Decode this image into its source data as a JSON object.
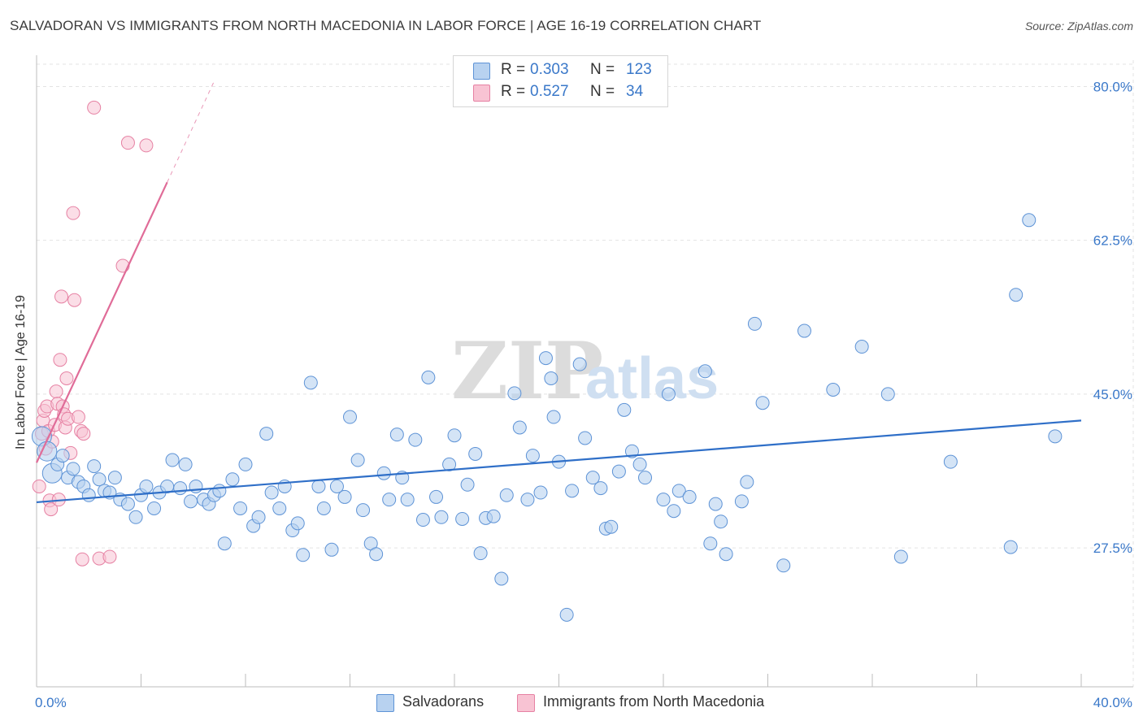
{
  "title": "SALVADORAN VS IMMIGRANTS FROM NORTH MACEDONIA IN LABOR FORCE | AGE 16-19 CORRELATION CHART",
  "source": "Source: ZipAtlas.com",
  "watermark": {
    "part1": "ZIP",
    "part2": "atlas"
  },
  "colors": {
    "blue_fill": "#b8d2f0",
    "blue_stroke": "#5e93d6",
    "blue_line": "#2f6fc8",
    "pink_fill": "#f8c3d3",
    "pink_stroke": "#e681a3",
    "pink_line": "#e06c98",
    "tick_text": "#3a78c9",
    "grid": "#e3e3e3"
  },
  "stats": [
    {
      "r_label": "R =",
      "r_value": "0.303",
      "n_label": "N =",
      "n_value": "123"
    },
    {
      "r_label": "R =",
      "r_value": "0.527",
      "n_label": "N =",
      "n_value": "34"
    }
  ],
  "legend": [
    {
      "label": "Salvadorans"
    },
    {
      "label": "Immigrants from North Macedonia"
    }
  ],
  "chart_data": {
    "type": "scatter",
    "title": "SALVADORAN VS IMMIGRANTS FROM NORTH MACEDONIA IN LABOR FORCE | AGE 16-19 CORRELATION CHART",
    "xlabel": "",
    "ylabel": "In Labor Force | Age 16-19",
    "xlim": [
      0,
      40
    ],
    "ylim": [
      11.7,
      83
    ],
    "x_tick_labels": [
      {
        "value": 0,
        "label": "0.0%"
      },
      {
        "value": 40,
        "label": "40.0%"
      }
    ],
    "y_tick_labels": [
      {
        "value": 80,
        "label": "80.0%"
      },
      {
        "value": 62.5,
        "label": "62.5%"
      },
      {
        "value": 45,
        "label": "45.0%"
      },
      {
        "value": 27.5,
        "label": "27.5%"
      }
    ],
    "series": [
      {
        "name": "Salvadorans",
        "r": 0.303,
        "n": 123,
        "trend": {
          "x": [
            0,
            40
          ],
          "y": [
            32.7,
            42.0
          ]
        },
        "points": [
          [
            0.2,
            40.2
          ],
          [
            0.4,
            38.5
          ],
          [
            0.6,
            36.0
          ],
          [
            0.8,
            37.0
          ],
          [
            1.0,
            38.0
          ],
          [
            1.2,
            35.5
          ],
          [
            1.4,
            36.5
          ],
          [
            1.6,
            35.0
          ],
          [
            1.8,
            34.5
          ],
          [
            2.0,
            33.5
          ],
          [
            2.2,
            36.8
          ],
          [
            2.4,
            35.3
          ],
          [
            2.6,
            34.0
          ],
          [
            2.8,
            33.8
          ],
          [
            3.0,
            35.5
          ],
          [
            3.2,
            33.0
          ],
          [
            3.5,
            32.5
          ],
          [
            3.8,
            31.0
          ],
          [
            4.0,
            33.5
          ],
          [
            4.2,
            34.5
          ],
          [
            4.5,
            32.0
          ],
          [
            4.7,
            33.8
          ],
          [
            5.0,
            34.5
          ],
          [
            5.2,
            37.5
          ],
          [
            5.5,
            34.3
          ],
          [
            5.7,
            37.0
          ],
          [
            5.9,
            32.8
          ],
          [
            6.1,
            34.5
          ],
          [
            6.4,
            33.0
          ],
          [
            6.6,
            32.5
          ],
          [
            6.8,
            33.5
          ],
          [
            7.0,
            34.0
          ],
          [
            7.2,
            28.0
          ],
          [
            7.5,
            35.3
          ],
          [
            7.8,
            32.0
          ],
          [
            8.0,
            37.0
          ],
          [
            8.3,
            30.0
          ],
          [
            8.5,
            31.0
          ],
          [
            8.8,
            40.5
          ],
          [
            9.0,
            33.8
          ],
          [
            9.3,
            32.0
          ],
          [
            9.5,
            34.5
          ],
          [
            9.8,
            29.5
          ],
          [
            10.0,
            30.3
          ],
          [
            10.2,
            26.7
          ],
          [
            10.5,
            46.3
          ],
          [
            10.8,
            34.5
          ],
          [
            11.0,
            32.0
          ],
          [
            11.3,
            27.3
          ],
          [
            11.5,
            34.5
          ],
          [
            11.8,
            33.3
          ],
          [
            12.0,
            42.4
          ],
          [
            12.3,
            37.5
          ],
          [
            12.5,
            31.8
          ],
          [
            12.8,
            28.0
          ],
          [
            13.0,
            26.8
          ],
          [
            13.3,
            36.0
          ],
          [
            13.5,
            33.0
          ],
          [
            13.8,
            40.4
          ],
          [
            14.0,
            35.5
          ],
          [
            14.2,
            33.0
          ],
          [
            14.5,
            39.8
          ],
          [
            14.8,
            30.7
          ],
          [
            15.0,
            46.9
          ],
          [
            15.3,
            33.3
          ],
          [
            15.5,
            31.0
          ],
          [
            15.8,
            37.0
          ],
          [
            16.0,
            40.3
          ],
          [
            16.3,
            30.8
          ],
          [
            16.5,
            34.7
          ],
          [
            16.8,
            38.2
          ],
          [
            17.0,
            26.9
          ],
          [
            17.2,
            30.9
          ],
          [
            17.5,
            31.1
          ],
          [
            17.8,
            24.0
          ],
          [
            18.0,
            33.5
          ],
          [
            18.3,
            45.1
          ],
          [
            18.5,
            41.2
          ],
          [
            18.8,
            33.0
          ],
          [
            19.0,
            38.0
          ],
          [
            19.3,
            33.8
          ],
          [
            19.5,
            49.1
          ],
          [
            19.7,
            46.8
          ],
          [
            19.8,
            42.4
          ],
          [
            20.0,
            37.3
          ],
          [
            20.3,
            19.9
          ],
          [
            20.5,
            34.0
          ],
          [
            20.8,
            48.4
          ],
          [
            21.0,
            40.0
          ],
          [
            21.3,
            35.5
          ],
          [
            21.6,
            34.3
          ],
          [
            21.8,
            29.7
          ],
          [
            22.0,
            29.9
          ],
          [
            22.3,
            36.2
          ],
          [
            22.5,
            43.2
          ],
          [
            22.8,
            38.5
          ],
          [
            23.1,
            37.0
          ],
          [
            23.3,
            35.5
          ],
          [
            24.0,
            33.0
          ],
          [
            24.2,
            45.0
          ],
          [
            24.4,
            31.7
          ],
          [
            24.6,
            34.0
          ],
          [
            25.0,
            33.3
          ],
          [
            25.6,
            47.6
          ],
          [
            25.8,
            28.0
          ],
          [
            26.0,
            32.5
          ],
          [
            26.2,
            30.5
          ],
          [
            26.4,
            26.8
          ],
          [
            27.0,
            32.8
          ],
          [
            27.2,
            35.0
          ],
          [
            27.5,
            53.0
          ],
          [
            27.8,
            44.0
          ],
          [
            28.6,
            25.5
          ],
          [
            29.4,
            52.2
          ],
          [
            30.5,
            45.5
          ],
          [
            31.6,
            50.4
          ],
          [
            32.6,
            45.0
          ],
          [
            33.1,
            26.5
          ],
          [
            35.0,
            37.3
          ],
          [
            37.3,
            27.6
          ],
          [
            37.5,
            56.3
          ],
          [
            38.0,
            64.8
          ],
          [
            39.0,
            40.2
          ]
        ]
      },
      {
        "name": "Immigrants from North Macedonia",
        "r": 0.527,
        "n": 34,
        "trend": {
          "x": [
            0,
            5.0
          ],
          "y": [
            37.2,
            69.1
          ]
        },
        "trend_dashed": {
          "x": [
            5.0,
            6.8
          ],
          "y": [
            69.1,
            80.6
          ]
        },
        "points": [
          [
            0.1,
            34.5
          ],
          [
            0.2,
            40.5
          ],
          [
            0.25,
            42.0
          ],
          [
            0.3,
            43.1
          ],
          [
            0.35,
            38.8
          ],
          [
            0.4,
            43.6
          ],
          [
            0.45,
            40.8
          ],
          [
            0.5,
            32.9
          ],
          [
            0.55,
            31.9
          ],
          [
            0.6,
            39.6
          ],
          [
            0.7,
            41.5
          ],
          [
            0.75,
            45.3
          ],
          [
            0.8,
            43.9
          ],
          [
            0.85,
            33.0
          ],
          [
            0.9,
            48.9
          ],
          [
            0.95,
            56.1
          ],
          [
            1.0,
            43.6
          ],
          [
            1.05,
            42.7
          ],
          [
            1.1,
            41.2
          ],
          [
            1.15,
            46.8
          ],
          [
            1.2,
            42.2
          ],
          [
            1.3,
            38.3
          ],
          [
            1.4,
            65.6
          ],
          [
            1.45,
            55.7
          ],
          [
            1.6,
            42.4
          ],
          [
            1.7,
            40.8
          ],
          [
            1.8,
            40.5
          ],
          [
            2.2,
            77.6
          ],
          [
            2.4,
            26.3
          ],
          [
            2.8,
            26.5
          ],
          [
            3.3,
            59.6
          ],
          [
            3.5,
            73.6
          ],
          [
            4.2,
            73.3
          ],
          [
            1.75,
            26.2
          ]
        ]
      }
    ]
  }
}
